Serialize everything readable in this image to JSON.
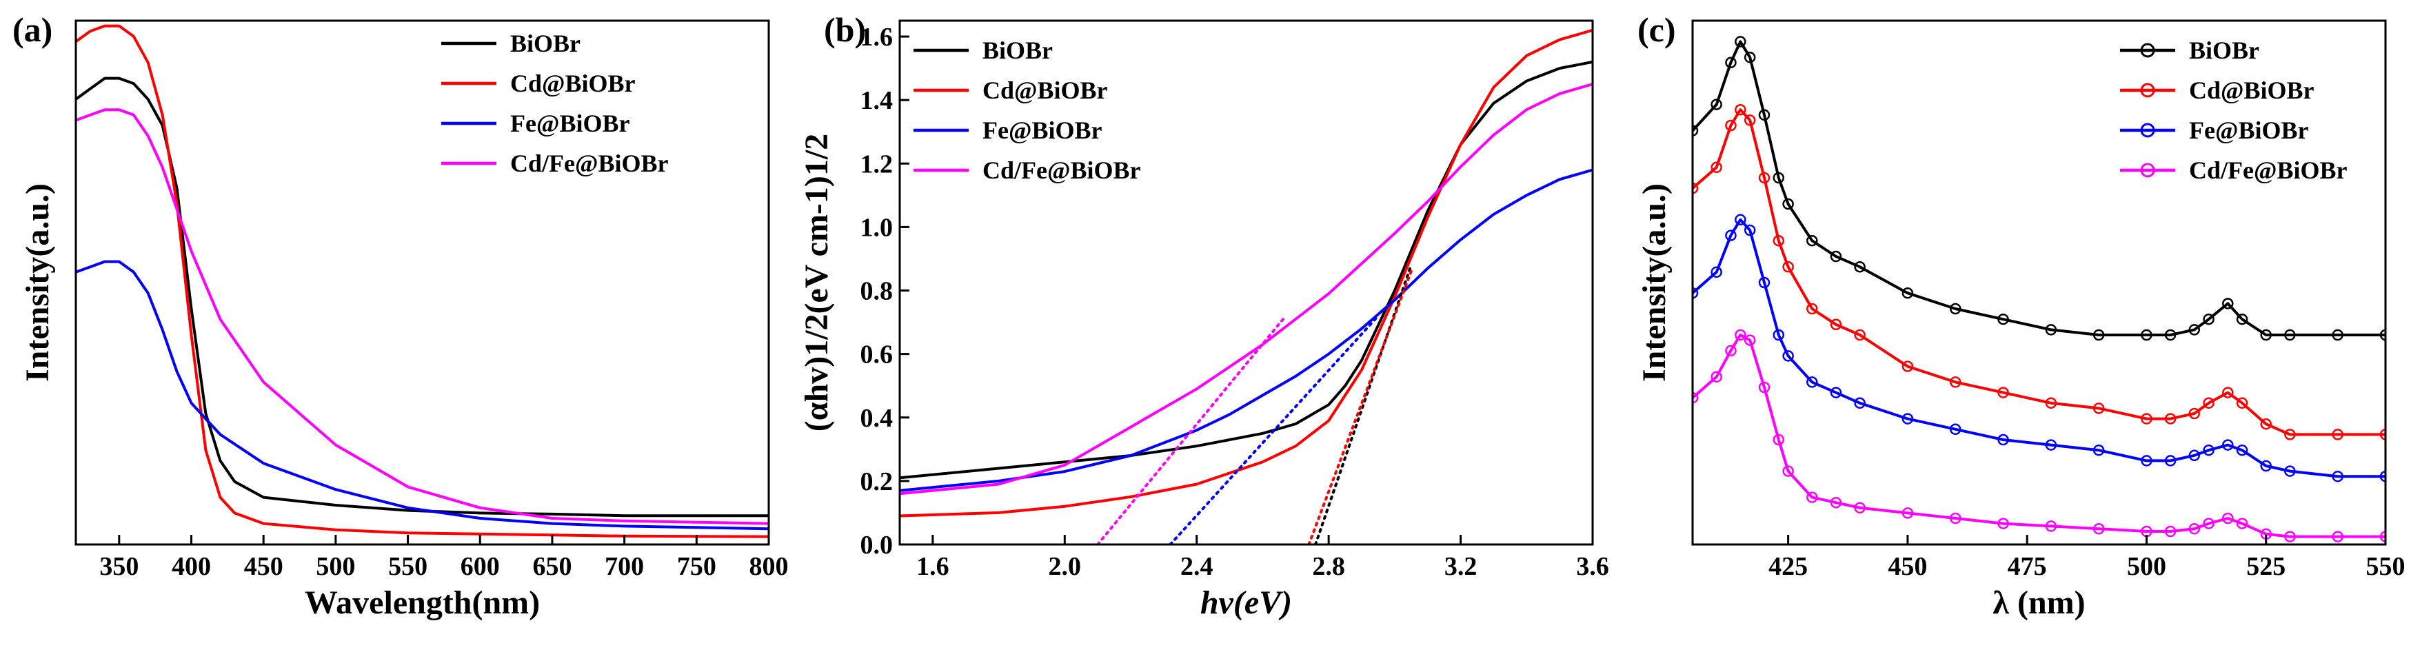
{
  "chart_data": [
    {
      "id": "a",
      "type": "line",
      "panel_label": "(a)",
      "xlabel": "Wavelength(nm)",
      "ylabel": "Intensity(a.u.)",
      "xlim": [
        320,
        800
      ],
      "ylim": [
        0,
        100
      ],
      "xticks": [
        350,
        400,
        450,
        500,
        550,
        600,
        650,
        700,
        750,
        800
      ],
      "xtick_labels": [
        "350",
        "400",
        "450",
        "500",
        "550",
        "600",
        "650",
        "700",
        "750",
        "800"
      ],
      "yticks": [],
      "ytick_labels": [],
      "legend_position": "top-right",
      "series": [
        {
          "name": "BiOBr",
          "color": "#000000",
          "x": [
            320,
            330,
            340,
            350,
            360,
            370,
            380,
            390,
            400,
            410,
            420,
            430,
            450,
            500,
            550,
            600,
            650,
            700,
            800
          ],
          "y": [
            85,
            87,
            89,
            89,
            88,
            85,
            80,
            68,
            45,
            25,
            16,
            12,
            9,
            7.5,
            6.5,
            6,
            5.8,
            5.5,
            5.5
          ]
        },
        {
          "name": "Cd@BiOBr",
          "color": "#ff0000",
          "x": [
            320,
            330,
            340,
            350,
            360,
            370,
            380,
            390,
            400,
            410,
            420,
            430,
            450,
            500,
            550,
            600,
            650,
            700,
            800
          ],
          "y": [
            96,
            98,
            99,
            99,
            97,
            92,
            82,
            65,
            40,
            18,
            9,
            6,
            4,
            2.8,
            2.2,
            2,
            1.8,
            1.6,
            1.5
          ]
        },
        {
          "name": "Fe@BiOBr",
          "color": "#0000ff",
          "x": [
            320,
            330,
            340,
            350,
            360,
            370,
            380,
            390,
            400,
            410,
            420,
            450,
            500,
            550,
            600,
            650,
            700,
            800
          ],
          "y": [
            52,
            53,
            54,
            54,
            52,
            48,
            41,
            33,
            27,
            24,
            21,
            15.5,
            10.5,
            7,
            5,
            4,
            3.5,
            3
          ]
        },
        {
          "name": "Cd/Fe@BiOBr",
          "color": "#ff00ff",
          "x": [
            320,
            330,
            340,
            350,
            360,
            370,
            380,
            400,
            420,
            450,
            500,
            550,
            600,
            650,
            700,
            800
          ],
          "y": [
            81,
            82,
            83,
            83,
            82,
            78,
            72,
            56,
            43,
            31,
            19,
            11,
            7,
            5,
            4.5,
            4
          ]
        }
      ]
    },
    {
      "id": "b",
      "type": "line",
      "panel_label": "(b)",
      "xlabel": "hv(eV)",
      "ylabel": "(αhv)1/2(eV cm-1)1/2",
      "xlim": [
        1.5,
        3.6
      ],
      "ylim": [
        0,
        1.65
      ],
      "xticks": [
        1.6,
        2.0,
        2.4,
        2.8,
        3.2,
        3.6
      ],
      "xtick_labels": [
        "1.6",
        "2.0",
        "2.4",
        "2.8",
        "3.2",
        "3.6"
      ],
      "yticks": [
        0.0,
        0.2,
        0.4,
        0.6,
        0.8,
        1.0,
        1.2,
        1.4,
        1.6
      ],
      "ytick_labels": [
        "0.0",
        "0.2",
        "0.4",
        "0.6",
        "0.8",
        "1.0",
        "1.2",
        "1.4",
        "1.6"
      ],
      "legend_position": "top-left",
      "series": [
        {
          "name": "BiOBr",
          "color": "#000000",
          "x": [
            1.5,
            1.8,
            2.0,
            2.2,
            2.4,
            2.6,
            2.7,
            2.8,
            2.85,
            2.9,
            3.0,
            3.1,
            3.2,
            3.3,
            3.4,
            3.5,
            3.6
          ],
          "y": [
            0.21,
            0.24,
            0.26,
            0.28,
            0.31,
            0.35,
            0.38,
            0.44,
            0.5,
            0.58,
            0.8,
            1.05,
            1.26,
            1.39,
            1.46,
            1.5,
            1.52
          ]
        },
        {
          "name": "Cd@BiOBr",
          "color": "#ff0000",
          "x": [
            1.5,
            1.8,
            2.0,
            2.2,
            2.4,
            2.6,
            2.7,
            2.8,
            2.9,
            3.0,
            3.1,
            3.2,
            3.3,
            3.4,
            3.5,
            3.6
          ],
          "y": [
            0.09,
            0.1,
            0.12,
            0.15,
            0.19,
            0.26,
            0.31,
            0.39,
            0.55,
            0.78,
            1.03,
            1.26,
            1.44,
            1.54,
            1.59,
            1.62
          ]
        },
        {
          "name": "Fe@BiOBr",
          "color": "#0000ff",
          "x": [
            1.5,
            1.8,
            2.0,
            2.2,
            2.4,
            2.5,
            2.6,
            2.7,
            2.8,
            2.9,
            3.0,
            3.1,
            3.2,
            3.3,
            3.4,
            3.5,
            3.6
          ],
          "y": [
            0.17,
            0.2,
            0.23,
            0.28,
            0.36,
            0.41,
            0.47,
            0.53,
            0.6,
            0.68,
            0.77,
            0.87,
            0.96,
            1.04,
            1.1,
            1.15,
            1.18
          ]
        },
        {
          "name": "Cd/Fe@BiOBr",
          "color": "#ff00ff",
          "x": [
            1.5,
            1.8,
            2.0,
            2.2,
            2.4,
            2.6,
            2.8,
            3.0,
            3.1,
            3.2,
            3.3,
            3.4,
            3.5,
            3.6
          ],
          "y": [
            0.16,
            0.19,
            0.25,
            0.37,
            0.49,
            0.63,
            0.79,
            0.98,
            1.08,
            1.19,
            1.29,
            1.37,
            1.42,
            1.45
          ]
        }
      ],
      "tangent_lines": [
        {
          "series": "BiOBr",
          "color": "#000000",
          "x": [
            2.76,
            3.05
          ],
          "y": [
            0,
            0.88
          ]
        },
        {
          "series": "Cd@BiOBr",
          "color": "#ff0000",
          "x": [
            2.74,
            3.05
          ],
          "y": [
            0,
            0.86
          ]
        },
        {
          "series": "Fe@BiOBr",
          "color": "#0000ff",
          "x": [
            2.32,
            2.95
          ],
          "y": [
            0,
            0.72
          ]
        },
        {
          "series": "Cd/Fe@BiOBr",
          "color": "#ff00ff",
          "x": [
            2.1,
            2.67
          ],
          "y": [
            0,
            0.72
          ]
        }
      ]
    },
    {
      "id": "c",
      "type": "line",
      "panel_label": "(c)",
      "xlabel": "λ (nm)",
      "ylabel": "Intensity(a.u.)",
      "xlim": [
        405,
        550
      ],
      "ylim": [
        0,
        100
      ],
      "xticks": [
        425,
        450,
        475,
        500,
        525,
        550
      ],
      "xtick_labels": [
        "425",
        "450",
        "475",
        "500",
        "525",
        "550"
      ],
      "yticks": [],
      "ytick_labels": [],
      "legend_position": "top-right",
      "series": [
        {
          "name": "BiOBr",
          "color": "#000000",
          "x": [
            405,
            410,
            413,
            415,
            417,
            420,
            423,
            425,
            430,
            435,
            440,
            450,
            460,
            470,
            480,
            490,
            500,
            505,
            510,
            513,
            517,
            520,
            525,
            530,
            540,
            550
          ],
          "y": [
            79,
            84,
            92,
            96,
            93,
            82,
            70,
            65,
            58,
            55,
            53,
            48,
            45,
            43,
            41,
            40,
            40,
            40,
            41,
            43,
            46,
            43,
            40,
            40,
            40,
            40
          ]
        },
        {
          "name": "Cd@BiOBr",
          "color": "#ff0000",
          "x": [
            405,
            410,
            413,
            415,
            417,
            420,
            423,
            425,
            430,
            435,
            440,
            450,
            460,
            470,
            480,
            490,
            500,
            505,
            510,
            513,
            517,
            520,
            525,
            530,
            540,
            550
          ],
          "y": [
            68,
            72,
            80,
            83,
            81,
            70,
            58,
            53,
            45,
            42,
            40,
            34,
            31,
            29,
            27,
            26,
            24,
            24,
            25,
            27,
            29,
            27,
            23,
            21,
            21,
            21
          ]
        },
        {
          "name": "Fe@BiOBr",
          "color": "#0000ff",
          "x": [
            405,
            410,
            413,
            415,
            417,
            420,
            423,
            425,
            430,
            435,
            440,
            450,
            460,
            470,
            480,
            490,
            500,
            505,
            510,
            513,
            517,
            520,
            525,
            530,
            540,
            550
          ],
          "y": [
            48,
            52,
            59,
            62,
            60,
            50,
            40,
            36,
            31,
            29,
            27,
            24,
            22,
            20,
            19,
            18,
            16,
            16,
            17,
            18,
            19,
            18,
            15,
            14,
            13,
            13
          ]
        },
        {
          "name": "Cd/Fe@BiOBr",
          "color": "#ff00ff",
          "x": [
            405,
            410,
            413,
            415,
            417,
            420,
            423,
            425,
            430,
            435,
            440,
            450,
            460,
            470,
            480,
            490,
            500,
            505,
            510,
            513,
            517,
            520,
            525,
            530,
            540,
            550
          ],
          "y": [
            28,
            32,
            37,
            40,
            39,
            30,
            20,
            14,
            9,
            8,
            7,
            6,
            5,
            4,
            3.5,
            3,
            2.5,
            2.5,
            3,
            4,
            5,
            4,
            2,
            1.5,
            1.5,
            1.5
          ]
        }
      ]
    }
  ]
}
